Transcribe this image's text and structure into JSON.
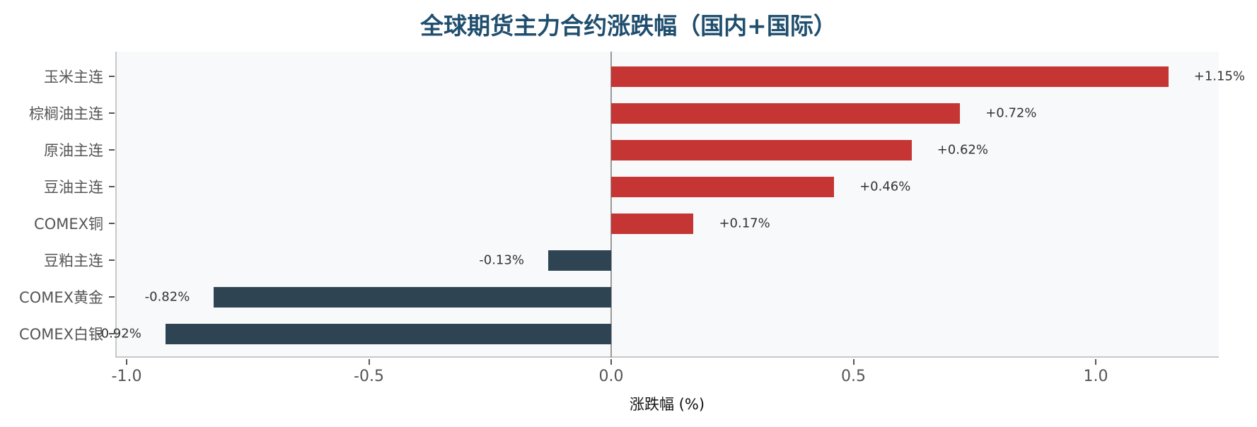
{
  "title": "全球期货主力合约涨跌幅（国内+国际）",
  "colors": {
    "positive": "#c43533",
    "negative": "#2e4453",
    "title": "#1f4e6e",
    "plot_bg": "#f8f9fb"
  },
  "chart_data": {
    "type": "bar",
    "orientation": "horizontal",
    "title": "全球期货主力合约涨跌幅（国内+国际）",
    "xlabel": "涨跌幅 (%)",
    "ylabel": "",
    "xlim": [
      -1.02,
      1.26
    ],
    "xticks": [
      -1.0,
      -0.5,
      0.0,
      0.5,
      1.0
    ],
    "xtick_labels": [
      "-1.0",
      "-0.5",
      "0.0",
      "0.5",
      "1.0"
    ],
    "grid": false,
    "categories": [
      "玉米主连",
      "棕榈油主连",
      "原油主连",
      "豆油主连",
      "COMEX铜",
      "豆粕主连",
      "COMEX黄金",
      "COMEX白银"
    ],
    "values": [
      1.15,
      0.72,
      0.62,
      0.46,
      0.17,
      -0.13,
      -0.82,
      -0.92
    ],
    "data_labels": [
      "+1.15%",
      "+0.72%",
      "+0.62%",
      "+0.46%",
      "+0.17%",
      "-0.13%",
      "-0.82%",
      "-0.92%"
    ]
  }
}
